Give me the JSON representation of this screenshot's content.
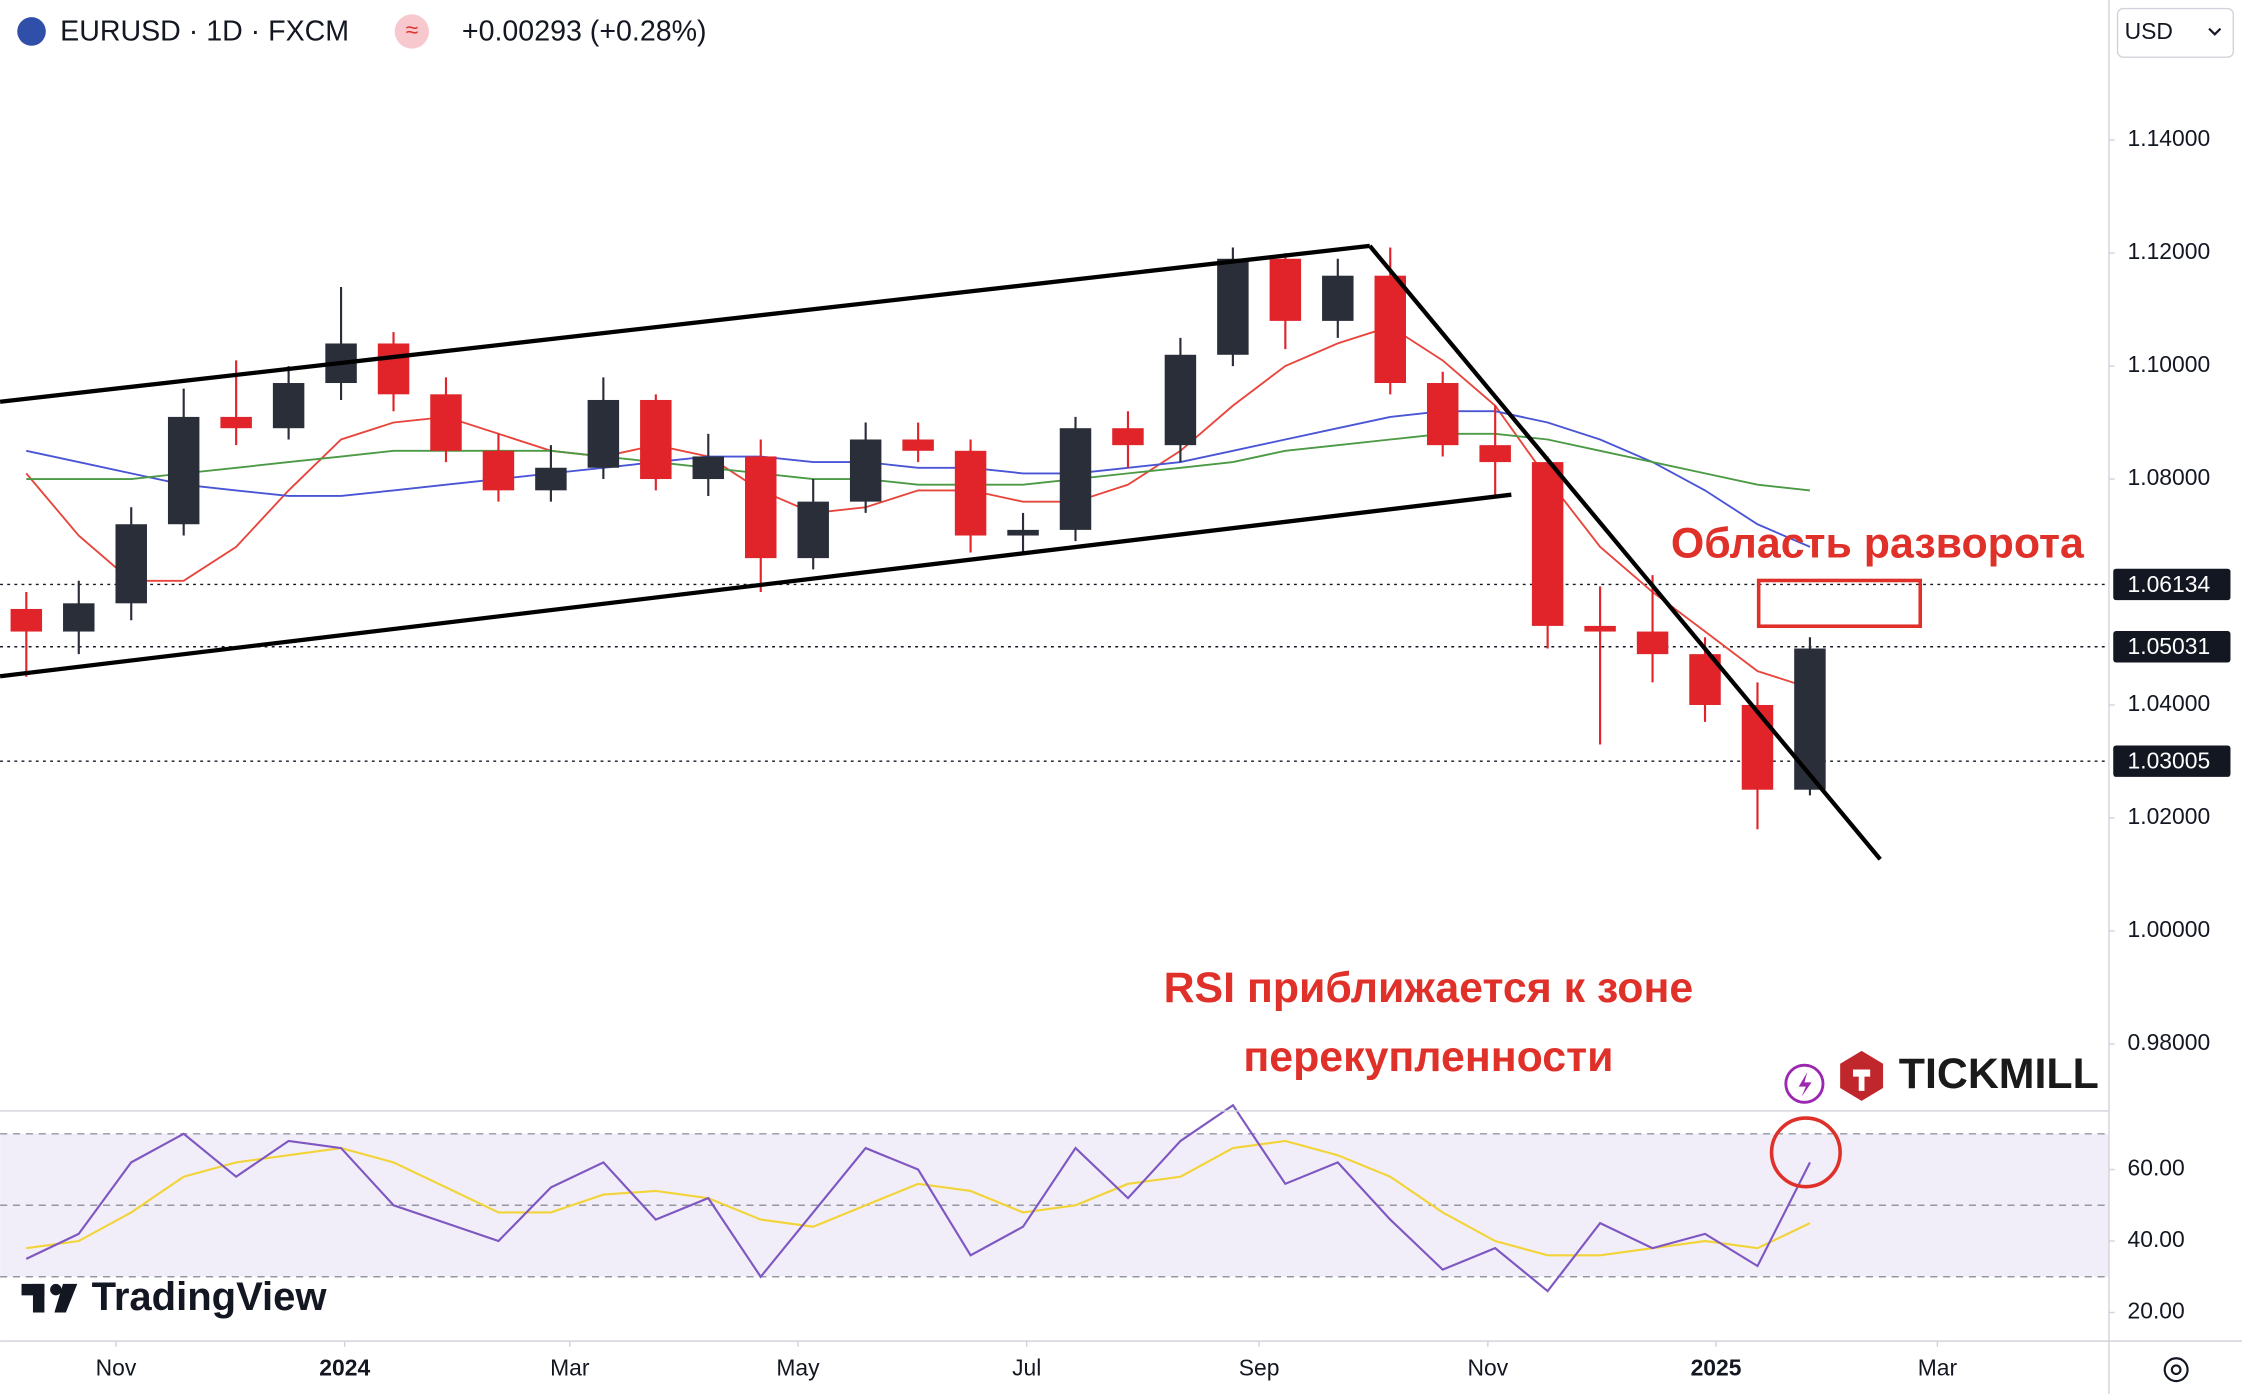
{
  "header": {
    "symbol": "EURUSD · 1D · FXCM",
    "change": "+0.00293 (+0.28%)",
    "currency": "USD"
  },
  "logos": {
    "tradingview": "TradingView",
    "tickmill": "TICKMILL"
  },
  "chart_data": [
    {
      "type": "candlestick",
      "open": [
        1.057,
        1.053,
        1.058,
        1.072,
        1.091,
        1.089,
        1.097,
        1.104,
        1.095,
        1.085,
        1.078,
        1.082,
        1.094,
        1.08,
        1.084,
        1.066,
        1.076,
        1.087,
        1.085,
        1.07,
        1.071,
        1.089,
        1.086,
        1.102,
        1.119,
        1.108,
        1.116,
        1.097,
        1.086,
        1.083,
        1.054,
        1.053,
        1.049,
        1.04,
        1.025
      ],
      "high": [
        1.06,
        1.062,
        1.075,
        1.096,
        1.101,
        1.1,
        1.114,
        1.106,
        1.098,
        1.088,
        1.086,
        1.098,
        1.095,
        1.088,
        1.087,
        1.08,
        1.09,
        1.09,
        1.087,
        1.074,
        1.091,
        1.092,
        1.105,
        1.121,
        1.12,
        1.119,
        1.121,
        1.099,
        1.093,
        1.084,
        1.061,
        1.063,
        1.052,
        1.044,
        1.052
      ],
      "low": [
        1.045,
        1.049,
        1.055,
        1.07,
        1.086,
        1.087,
        1.094,
        1.092,
        1.083,
        1.076,
        1.076,
        1.08,
        1.078,
        1.077,
        1.06,
        1.064,
        1.074,
        1.083,
        1.067,
        1.067,
        1.069,
        1.082,
        1.083,
        1.1,
        1.103,
        1.105,
        1.095,
        1.084,
        1.077,
        1.05,
        1.033,
        1.044,
        1.037,
        1.018,
        1.024
      ],
      "close": [
        1.053,
        1.058,
        1.072,
        1.091,
        1.089,
        1.097,
        1.104,
        1.095,
        1.085,
        1.078,
        1.082,
        1.094,
        1.08,
        1.084,
        1.066,
        1.076,
        1.087,
        1.085,
        1.07,
        1.071,
        1.089,
        1.086,
        1.102,
        1.119,
        1.108,
        1.116,
        1.097,
        1.086,
        1.083,
        1.054,
        1.053,
        1.049,
        1.04,
        1.025,
        1.05
      ],
      "up_color": "#2a2e39",
      "down_color": "#e0242a",
      "series": [
        {
          "color": "#e8453c",
          "values": [
            1.081,
            1.07,
            1.062,
            1.062,
            1.068,
            1.078,
            1.087,
            1.09,
            1.091,
            1.088,
            1.085,
            1.084,
            1.086,
            1.084,
            1.078,
            1.074,
            1.075,
            1.078,
            1.078,
            1.076,
            1.076,
            1.079,
            1.085,
            1.093,
            1.1,
            1.104,
            1.107,
            1.101,
            1.093,
            1.08,
            1.068,
            1.06,
            1.053,
            1.046,
            1.043
          ]
        },
        {
          "color": "#4a55d6",
          "values": [
            1.085,
            1.083,
            1.081,
            1.079,
            1.078,
            1.077,
            1.077,
            1.078,
            1.079,
            1.08,
            1.081,
            1.082,
            1.083,
            1.084,
            1.084,
            1.083,
            1.083,
            1.082,
            1.082,
            1.081,
            1.081,
            1.082,
            1.083,
            1.085,
            1.087,
            1.089,
            1.091,
            1.092,
            1.092,
            1.09,
            1.087,
            1.083,
            1.078,
            1.072,
            1.068
          ]
        },
        {
          "color": "#4c9a45",
          "values": [
            1.08,
            1.08,
            1.08,
            1.081,
            1.082,
            1.083,
            1.084,
            1.085,
            1.085,
            1.085,
            1.085,
            1.084,
            1.083,
            1.082,
            1.081,
            1.08,
            1.08,
            1.079,
            1.079,
            1.079,
            1.08,
            1.081,
            1.082,
            1.083,
            1.085,
            1.086,
            1.087,
            1.088,
            1.088,
            1.087,
            1.085,
            1.083,
            1.081,
            1.079,
            1.078
          ]
        }
      ],
      "price_levels": [
        1.06134,
        1.05031,
        1.03005
      ],
      "xlim": [
        -0.5,
        39.7
      ],
      "xticks": [
        {
          "value": 1.71,
          "label": "Nov"
        },
        {
          "value": 6.07,
          "label": "2024"
        },
        {
          "value": 10.36,
          "label": "Mar"
        },
        {
          "value": 14.71,
          "label": "May"
        },
        {
          "value": 19.07,
          "label": "Jul"
        },
        {
          "value": 23.5,
          "label": "Sep"
        },
        {
          "value": 27.86,
          "label": "Nov"
        },
        {
          "value": 32.21,
          "label": "2025"
        },
        {
          "value": 36.43,
          "label": "Mar"
        }
      ],
      "ylim": [
        0.96864,
        1.16481
      ],
      "yticks": [
        {
          "value": 0.98,
          "label": "0.98000"
        },
        {
          "value": 1.0,
          "label": "1.00000"
        },
        {
          "value": 1.02,
          "label": "1.02000"
        },
        {
          "value": 1.04,
          "label": "1.04000"
        },
        {
          "value": 1.08,
          "label": "1.08000"
        },
        {
          "value": 1.1,
          "label": "1.10000"
        },
        {
          "value": 1.12,
          "label": "1.12000"
        },
        {
          "value": 1.14,
          "label": "1.14000"
        }
      ],
      "annotations": [
        "Область разворота",
        "RSI приближается к зоне",
        "перекупленности"
      ]
    },
    {
      "type": "line",
      "series": [
        {
          "color": "#7e57c2",
          "values": [
            35,
            42,
            62,
            70,
            58,
            68,
            66,
            50,
            45,
            40,
            55,
            62,
            46,
            52,
            30,
            48,
            66,
            60,
            36,
            44,
            66,
            52,
            68,
            78,
            56,
            62,
            46,
            32,
            38,
            26,
            45,
            38,
            42,
            33,
            62
          ]
        },
        {
          "color": "#f2d43a",
          "values": [
            38,
            40,
            48,
            58,
            62,
            64,
            66,
            62,
            55,
            48,
            48,
            53,
            54,
            52,
            46,
            44,
            50,
            56,
            54,
            48,
            50,
            56,
            58,
            66,
            68,
            64,
            58,
            48,
            40,
            36,
            36,
            38,
            40,
            38,
            45
          ]
        }
      ],
      "levels": [
        30,
        50,
        70
      ],
      "ylim": [
        12.4,
        76
      ],
      "yticks": [
        {
          "value": 20,
          "label": "20.00"
        },
        {
          "value": 40,
          "label": "40.00"
        },
        {
          "value": 60,
          "label": "60.00"
        }
      ]
    }
  ]
}
